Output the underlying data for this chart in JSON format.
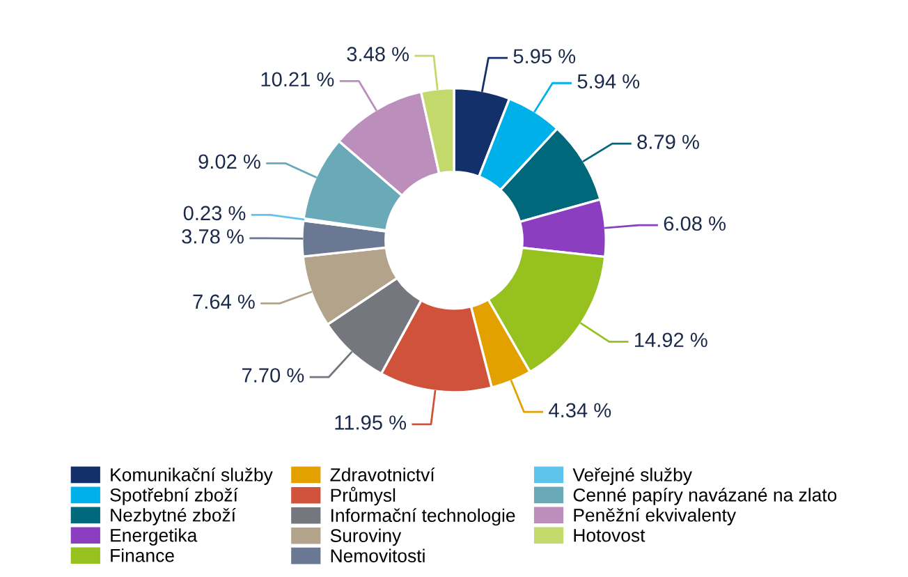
{
  "chart_data": {
    "type": "donut",
    "categories": [
      "Komunikační služby",
      "Spotřební zboží",
      "Nezbytné zboží",
      "Energetika",
      "Finance",
      "Zdravotnictví",
      "Průmysl",
      "Informační technologie",
      "Suroviny",
      "Nemovitosti",
      "Veřejné služby",
      "Cenné papíry navázané na zlato",
      "Peněžní ekvivalenty",
      "Hotovost"
    ],
    "values": [
      5.95,
      5.94,
      8.79,
      6.08,
      14.92,
      4.34,
      11.95,
      7.7,
      7.64,
      3.78,
      0.23,
      9.02,
      10.21,
      3.48
    ],
    "value_labels": [
      "5.95 %",
      "5.94 %",
      "8.79 %",
      "6.08 %",
      "14.92 %",
      "4.34 %",
      "11.95 %",
      "7.70 %",
      "7.64 %",
      "3.78 %",
      "0.23 %",
      "9.02 %",
      "10.21 %",
      "3.48 %"
    ],
    "colors": [
      "#13306b",
      "#00b0e8",
      "#00687a",
      "#8b3fc0",
      "#97c11f",
      "#e3a100",
      "#d0523a",
      "#74777d",
      "#b3a38b",
      "#6b7894",
      "#5fc4ec",
      "#6aa9b8",
      "#bb8ebc",
      "#c3d96b"
    ],
    "legend": "bottom"
  }
}
